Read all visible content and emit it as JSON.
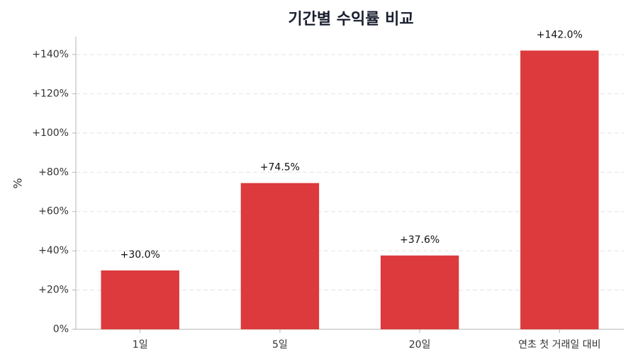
{
  "chart_data": {
    "type": "bar",
    "title": "기간별 수익률 비교",
    "y_label": "%",
    "categories": [
      "1일",
      "5일",
      "20일",
      "연초 첫 거래일 대비"
    ],
    "values": [
      30.0,
      74.5,
      37.6,
      142.0
    ],
    "value_labels": [
      "+30.0%",
      "+74.5%",
      "+37.6%",
      "+142.0%"
    ],
    "color": "#dc3a3c",
    "ylim": [
      0,
      149
    ],
    "yticks": [
      {
        "value": 0,
        "label": "0%"
      },
      {
        "value": 20,
        "label": "+20%"
      },
      {
        "value": 40,
        "label": "+40%"
      },
      {
        "value": 60,
        "label": "+60%"
      },
      {
        "value": 80,
        "label": "+80%"
      },
      {
        "value": 100,
        "label": "+100%"
      },
      {
        "value": 120,
        "label": "+120%"
      },
      {
        "value": 140,
        "label": "+140%"
      }
    ],
    "grid": true
  }
}
